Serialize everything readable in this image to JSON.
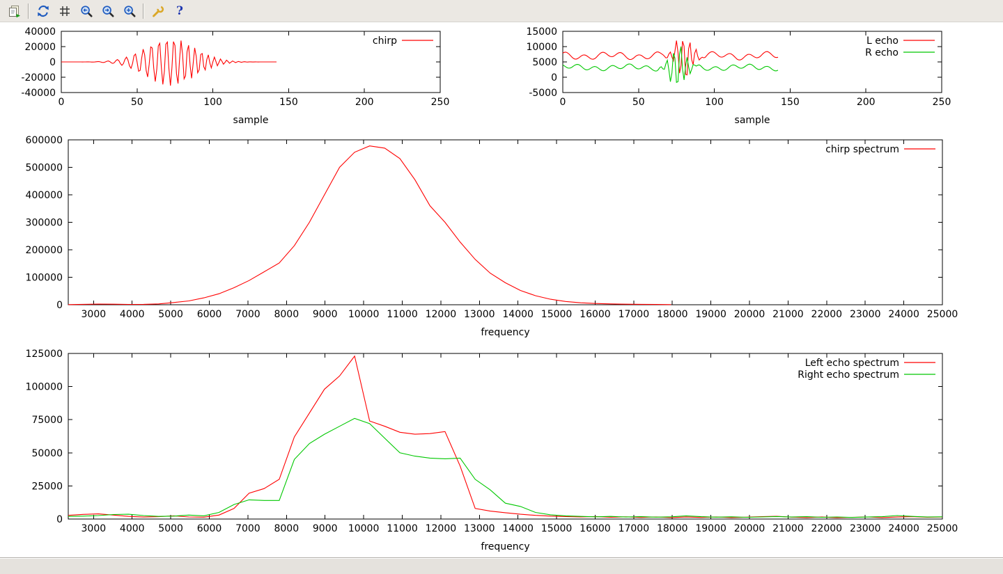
{
  "toolbar": {
    "buttons": [
      {
        "name": "copy-to-clipboard",
        "icon": "clipboard-icon"
      },
      {
        "name": "replot",
        "icon": "refresh-arrows-icon"
      },
      {
        "name": "toggle-grid",
        "icon": "grid-icon"
      },
      {
        "name": "zoom-previous",
        "icon": "magnifier-left-icon"
      },
      {
        "name": "zoom-next",
        "icon": "magnifier-right-icon"
      },
      {
        "name": "autoscale",
        "icon": "magnifier-plus-icon"
      },
      {
        "name": "configure",
        "icon": "wrench-icon"
      },
      {
        "name": "help",
        "icon": "question-mark-icon"
      }
    ]
  },
  "statusbar": {
    "text": ""
  },
  "colors": {
    "red": "#ff0000",
    "green": "#00c800",
    "axis": "#000000"
  },
  "chart_data": [
    {
      "type": "line",
      "xlabel": "sample",
      "xlim": [
        0,
        250
      ],
      "ylim": [
        -40000,
        40000
      ],
      "xticks": [
        0,
        50,
        100,
        150,
        200,
        250
      ],
      "yticks": [
        -40000,
        -20000,
        0,
        20000,
        40000
      ],
      "legend_position": "top-right",
      "grid": false,
      "series": [
        {
          "name": "chirp",
          "color": "#ff0000",
          "gen": {
            "n": 143,
            "base": 0,
            "ripples": [],
            "burst": {
              "amp": 31000,
              "center": 72,
              "sigma": 23,
              "f0": 0.12,
              "k": 0.0012,
              "phase": 0
            }
          }
        }
      ]
    },
    {
      "type": "line",
      "xlabel": "sample",
      "xlim": [
        0,
        250
      ],
      "ylim": [
        -5000,
        15000
      ],
      "xticks": [
        0,
        50,
        100,
        150,
        200,
        250
      ],
      "yticks": [
        -5000,
        0,
        5000,
        10000,
        15000
      ],
      "legend_position": "top-right",
      "grid": false,
      "series": [
        {
          "name": "L echo",
          "color": "#ff0000",
          "gen": {
            "n": 143,
            "base": 7000,
            "ripples": [
              {
                "amp": 850,
                "f": 0.083,
                "p": 0.5
              },
              {
                "amp": 550,
                "f": 0.029,
                "p": 2.1
              }
            ],
            "burst": {
              "amp": 7000,
              "center": 80,
              "sigma": 7,
              "f0": 0.15,
              "k": 0.001,
              "phase": 1.2
            }
          }
        },
        {
          "name": "R echo",
          "color": "#00c800",
          "gen": {
            "n": 143,
            "base": 3200,
            "ripples": [
              {
                "amp": 700,
                "f": 0.088,
                "p": 2.4
              },
              {
                "amp": 450,
                "f": 0.026,
                "p": 0.8
              }
            ],
            "burst": {
              "amp": 6800,
              "center": 76,
              "sigma": 7,
              "f0": 0.15,
              "k": 0.001,
              "phase": 3.6
            }
          }
        }
      ]
    },
    {
      "type": "line",
      "xlabel": "frequency",
      "xlim": [
        2344,
        25000
      ],
      "ylim": [
        0,
        600000
      ],
      "xticks": [
        3000,
        4000,
        5000,
        6000,
        7000,
        8000,
        9000,
        10000,
        11000,
        12000,
        13000,
        14000,
        15000,
        16000,
        17000,
        18000,
        19000,
        20000,
        21000,
        22000,
        23000,
        24000,
        25000
      ],
      "yticks": [
        0,
        100000,
        200000,
        300000,
        400000,
        500000,
        600000
      ],
      "legend_position": "top-right",
      "grid": false,
      "series": [
        {
          "name": "chirp spectrum",
          "color": "#ff0000",
          "x": [
            2344,
            2734,
            3125,
            3516,
            3906,
            4297,
            4688,
            5078,
            5469,
            5859,
            6250,
            6641,
            7031,
            7422,
            7813,
            8203,
            8594,
            8984,
            9375,
            9766,
            10156,
            10547,
            10938,
            11328,
            11719,
            12109,
            12500,
            12891,
            13281,
            13672,
            14063,
            14453,
            14844,
            15234,
            15625,
            16016,
            16406,
            16797,
            17188,
            17578,
            17969
          ],
          "y": [
            500,
            1500,
            2500,
            2000,
            1200,
            1500,
            3000,
            8000,
            14000,
            25000,
            40000,
            62000,
            88000,
            120000,
            152000,
            215000,
            300000,
            400000,
            500000,
            555000,
            578000,
            570000,
            532000,
            455000,
            360000,
            300000,
            228000,
            165000,
            115000,
            80000,
            52000,
            33000,
            20000,
            12000,
            7000,
            4500,
            3000,
            2000,
            1400,
            900,
            600
          ]
        }
      ]
    },
    {
      "type": "line",
      "xlabel": "frequency",
      "xlim": [
        2344,
        25000
      ],
      "ylim": [
        0,
        125000
      ],
      "xticks": [
        3000,
        4000,
        5000,
        6000,
        7000,
        8000,
        9000,
        10000,
        11000,
        12000,
        13000,
        14000,
        15000,
        16000,
        17000,
        18000,
        19000,
        20000,
        21000,
        22000,
        23000,
        24000,
        25000
      ],
      "yticks": [
        0,
        25000,
        50000,
        75000,
        100000,
        125000
      ],
      "legend_position": "top-right",
      "grid": false,
      "series": [
        {
          "name": "Left echo spectrum",
          "color": "#ff0000",
          "x": [
            2344,
            2734,
            3125,
            3516,
            3906,
            4297,
            4688,
            5078,
            5469,
            5859,
            6250,
            6641,
            7031,
            7422,
            7813,
            8203,
            8594,
            8984,
            9375,
            9766,
            10156,
            10547,
            10938,
            11328,
            11719,
            12109,
            12500,
            12891,
            13281,
            13672,
            14063,
            14453,
            14844,
            15234,
            15625,
            16016,
            16406,
            16797,
            17188,
            17578,
            17969,
            18359,
            18750,
            19141,
            19531,
            19922,
            20313,
            20703,
            21094,
            21484,
            21875,
            22266,
            22656,
            23047,
            23438,
            23828,
            24219,
            24609,
            25000
          ],
          "y": [
            2800,
            3500,
            3900,
            3000,
            2000,
            1500,
            1800,
            2400,
            1600,
            1400,
            3000,
            8000,
            19500,
            23000,
            30000,
            62000,
            80000,
            98000,
            108000,
            123000,
            74000,
            70000,
            65500,
            64000,
            64500,
            66000,
            40000,
            8000,
            6000,
            4800,
            3600,
            2800,
            2200,
            1900,
            1600,
            1900,
            1300,
            1700,
            1200,
            1600,
            1100,
            1500,
            1200,
            1600,
            1100,
            1400,
            1800,
            2100,
            1400,
            1100,
            1500,
            1000,
            1300,
            1600,
            1100,
            1500,
            1800,
            1300,
            1500
          ]
        },
        {
          "name": "Right echo spectrum",
          "color": "#00c800",
          "x": [
            2344,
            2734,
            3125,
            3516,
            3906,
            4297,
            4688,
            5078,
            5469,
            5859,
            6250,
            6641,
            7031,
            7422,
            7813,
            8203,
            8594,
            8984,
            9375,
            9766,
            10156,
            10547,
            10938,
            11328,
            11719,
            12109,
            12500,
            12891,
            13281,
            13672,
            14063,
            14453,
            14844,
            15234,
            15625,
            16016,
            16406,
            16797,
            17188,
            17578,
            17969,
            18359,
            18750,
            19141,
            19531,
            19922,
            20313,
            20703,
            21094,
            21484,
            21875,
            22266,
            22656,
            23047,
            23438,
            23828,
            24219,
            24609,
            25000
          ],
          "y": [
            2000,
            2200,
            2600,
            3400,
            3600,
            2600,
            2000,
            2200,
            3000,
            2400,
            5000,
            11000,
            14500,
            14000,
            14000,
            45000,
            57000,
            64000,
            70000,
            76000,
            72000,
            61000,
            50000,
            47500,
            46000,
            45500,
            46000,
            30000,
            22000,
            12000,
            9500,
            5000,
            3200,
            2400,
            2000,
            1700,
            2000,
            1500,
            1800,
            1400,
            1700,
            2400,
            1800,
            1400,
            1700,
            1300,
            1600,
            1900,
            1500,
            1800,
            1300,
            1600,
            1200,
            1500,
            1800,
            2600,
            2000,
            1500,
            1700
          ]
        }
      ]
    }
  ]
}
